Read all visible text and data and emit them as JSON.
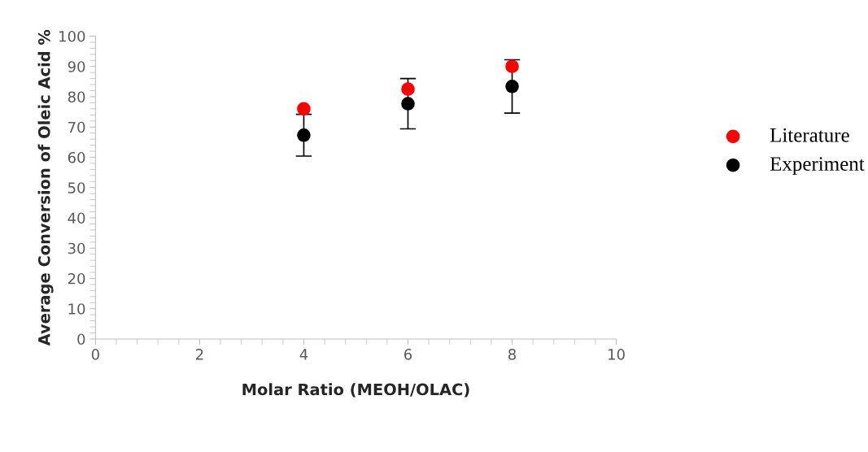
{
  "chart_data": {
    "type": "scatter",
    "xlabel": "Molar Ratio (MEOH/OLAC)",
    "ylabel": "Average Conversion of Oleic Acid %",
    "x": [
      4,
      6,
      8
    ],
    "series": [
      {
        "name": "Literature",
        "color": "#ff0000",
        "values": [
          76,
          82.5,
          90
        ]
      },
      {
        "name": "Experiment",
        "color": "#000000",
        "values": [
          67.3,
          77.7,
          83.4
        ],
        "errors": [
          6.9,
          8.3,
          8.8
        ]
      }
    ],
    "xlim": [
      0,
      10
    ],
    "xticks": [
      0,
      2,
      4,
      6,
      8,
      10
    ],
    "ylim": [
      0,
      100
    ],
    "yticks": [
      0,
      10,
      20,
      30,
      40,
      50,
      60,
      70,
      80,
      90,
      100
    ],
    "grid": false,
    "legend": "right",
    "marker": "circle"
  }
}
